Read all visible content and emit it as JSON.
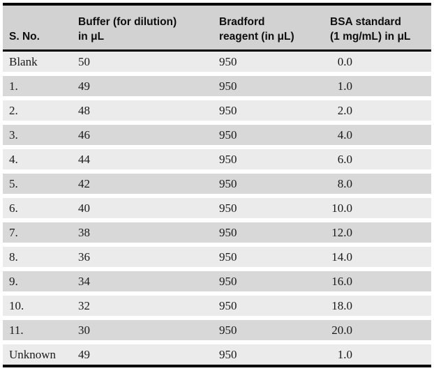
{
  "table": {
    "header": {
      "cols": [
        {
          "id": "sno",
          "lines": [
            "S. No."
          ]
        },
        {
          "id": "buffer",
          "lines": [
            "Buffer (for dilution)",
            "in μL"
          ]
        },
        {
          "id": "bradford",
          "lines": [
            "Bradford",
            "reagent (in μL)"
          ]
        },
        {
          "id": "bsa",
          "lines": [
            "BSA standard",
            "(1 mg/mL) in μL"
          ]
        }
      ]
    },
    "rows": [
      {
        "sno": "Blank",
        "buffer": "50",
        "bradford": "950",
        "bsa": "0.0"
      },
      {
        "sno": "1.",
        "buffer": "49",
        "bradford": "950",
        "bsa": "1.0"
      },
      {
        "sno": "2.",
        "buffer": "48",
        "bradford": "950",
        "bsa": "2.0"
      },
      {
        "sno": "3.",
        "buffer": "46",
        "bradford": "950",
        "bsa": "4.0"
      },
      {
        "sno": "4.",
        "buffer": "44",
        "bradford": "950",
        "bsa": "6.0"
      },
      {
        "sno": "5.",
        "buffer": "42",
        "bradford": "950",
        "bsa": "8.0"
      },
      {
        "sno": "6.",
        "buffer": "40",
        "bradford": "950",
        "bsa": "10.0"
      },
      {
        "sno": "7.",
        "buffer": "38",
        "bradford": "950",
        "bsa": "12.0"
      },
      {
        "sno": "8.",
        "buffer": "36",
        "bradford": "950",
        "bsa": "14.0"
      },
      {
        "sno": "9.",
        "buffer": "34",
        "bradford": "950",
        "bsa": "16.0"
      },
      {
        "sno": "10.",
        "buffer": "32",
        "bradford": "950",
        "bsa": "18.0"
      },
      {
        "sno": "11.",
        "buffer": "30",
        "bradford": "950",
        "bsa": "20.0"
      },
      {
        "sno": "Unknown",
        "buffer": "49",
        "bradford": "950",
        "bsa": "1.0"
      }
    ],
    "colors": {
      "header_bg": "#d2d2d2",
      "row_dark": "#d8d8d8",
      "row_light": "#ebebeb",
      "rule": "#000000",
      "text": "#1a1a1a"
    }
  }
}
